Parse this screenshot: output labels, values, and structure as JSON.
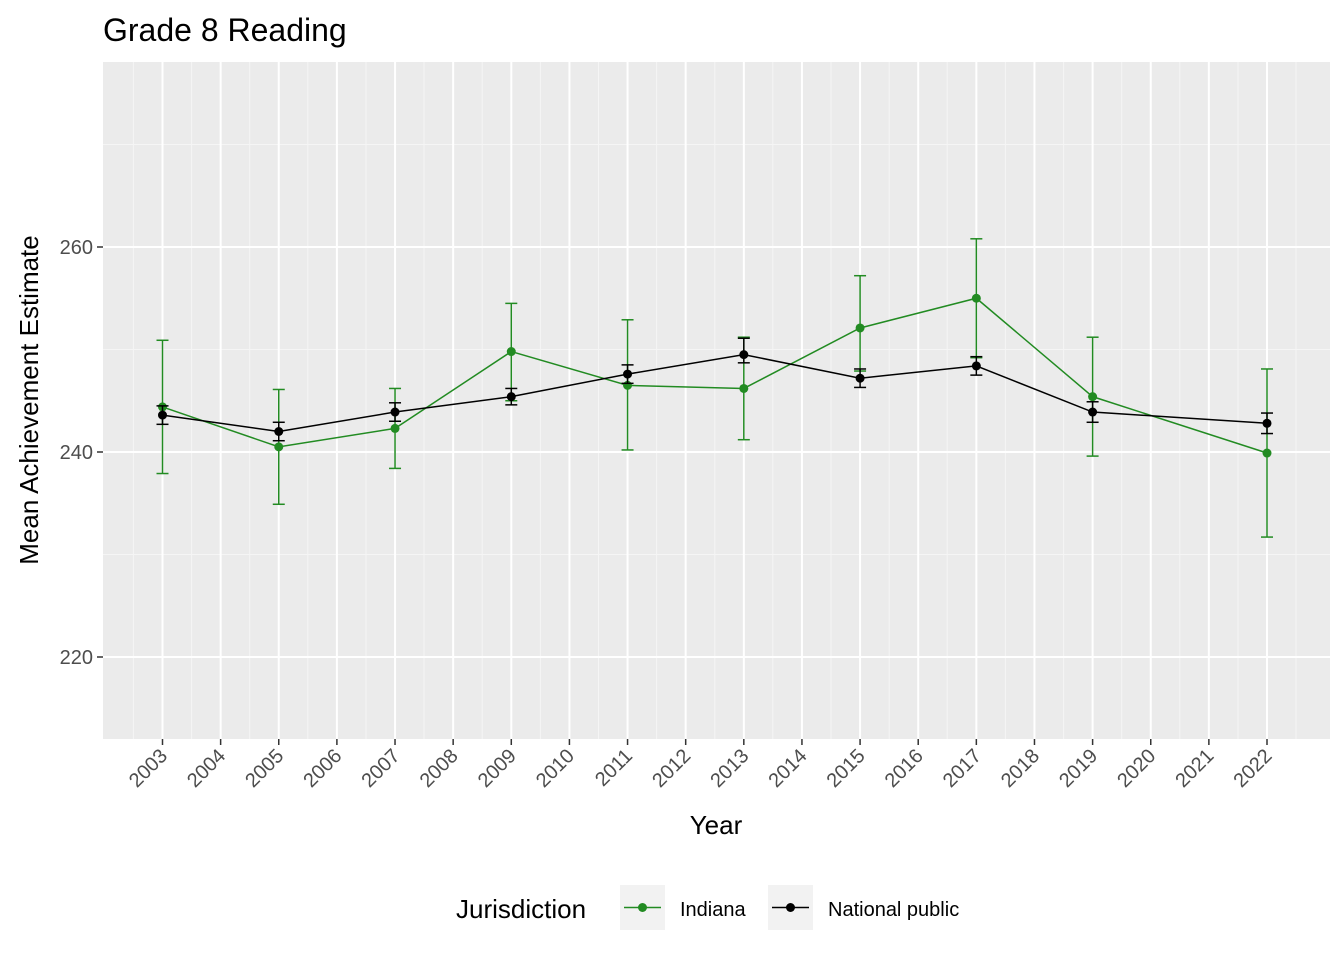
{
  "chart_data": {
    "type": "line",
    "title": "Grade 8 Reading",
    "xlabel": "Year",
    "ylabel": "Mean Achievement Estimate",
    "x_ticks": [
      "2003",
      "2004",
      "2005",
      "2006",
      "2007",
      "2008",
      "2009",
      "2010",
      "2011",
      "2012",
      "2013",
      "2014",
      "2015",
      "2016",
      "2017",
      "2018",
      "2019",
      "2020",
      "2021",
      "2022"
    ],
    "y_ticks": [
      220,
      240,
      260
    ],
    "ylim": [
      212,
      280
    ],
    "grid": true,
    "legend": {
      "title": "Jurisdiction",
      "position": "bottom"
    },
    "series": [
      {
        "name": "Indiana",
        "color": "#228b22",
        "x": [
          "2003",
          "2005",
          "2007",
          "2009",
          "2011",
          "2013",
          "2015",
          "2017",
          "2019",
          "2022"
        ],
        "values": [
          244.4,
          240.5,
          242.3,
          249.8,
          246.5,
          246.2,
          252.1,
          255.0,
          245.4,
          239.9
        ],
        "lower": [
          237.9,
          234.9,
          238.4,
          245.0,
          240.2,
          241.2,
          247.9,
          249.2,
          239.6,
          231.7
        ],
        "upper": [
          250.9,
          246.1,
          246.2,
          254.5,
          252.9,
          251.2,
          257.2,
          260.8,
          251.2,
          248.1
        ]
      },
      {
        "name": "National public",
        "color": "#000000",
        "x": [
          "2003",
          "2005",
          "2007",
          "2009",
          "2011",
          "2013",
          "2015",
          "2017",
          "2019",
          "2022"
        ],
        "values": [
          243.6,
          242.0,
          243.9,
          245.4,
          247.6,
          249.5,
          247.2,
          248.4,
          243.9,
          242.8
        ],
        "lower": [
          242.7,
          241.1,
          243.0,
          244.6,
          246.7,
          248.7,
          246.3,
          247.5,
          242.9,
          241.8
        ],
        "upper": [
          244.5,
          242.9,
          244.8,
          246.2,
          248.5,
          251.1,
          248.1,
          249.3,
          244.9,
          243.8
        ]
      }
    ]
  }
}
